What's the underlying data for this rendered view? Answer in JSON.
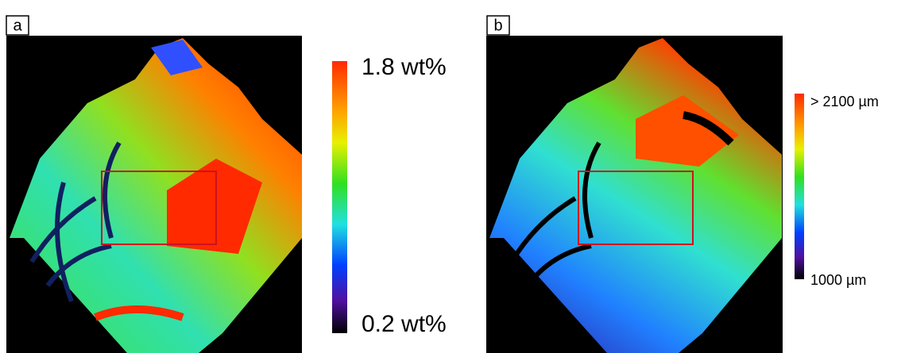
{
  "panels": [
    {
      "label": "a",
      "colorbar": {
        "max": "1.8 wt%",
        "min": "0.2 wt%"
      }
    },
    {
      "label": "b",
      "colorbar": {
        "max": "> 2100 µm",
        "min": "1000 µm"
      }
    }
  ]
}
